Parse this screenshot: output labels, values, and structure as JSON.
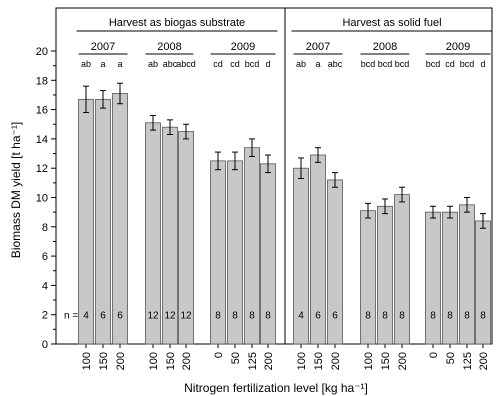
{
  "chart_data": {
    "type": "bar",
    "ylabel": "Biomass DM yield [t ha⁻¹]",
    "xlabel": "Nitrogen fertilization level [kg ha⁻¹]",
    "ylim": [
      0,
      20
    ],
    "yticks": [
      0,
      2,
      4,
      6,
      8,
      10,
      12,
      14,
      16,
      18,
      20
    ],
    "grid": false,
    "bar_color": "#c8c8c8",
    "n_prefix": "n =",
    "sections": [
      {
        "title": "Harvest as biogas substrate",
        "years": [
          {
            "year": "2007",
            "bars": [
              {
                "n_level": "100",
                "value": 16.7,
                "error": 0.9,
                "letters": "ab",
                "n": "4"
              },
              {
                "n_level": "150",
                "value": 16.7,
                "error": 0.6,
                "letters": "a",
                "n": "6"
              },
              {
                "n_level": "200",
                "value": 17.1,
                "error": 0.7,
                "letters": "a",
                "n": "6"
              }
            ]
          },
          {
            "year": "2008",
            "bars": [
              {
                "n_level": "100",
                "value": 15.1,
                "error": 0.5,
                "letters": "ab",
                "n": "12"
              },
              {
                "n_level": "150",
                "value": 14.8,
                "error": 0.5,
                "letters": "abc",
                "n": "12"
              },
              {
                "n_level": "200",
                "value": 14.5,
                "error": 0.5,
                "letters": "abcd",
                "n": "12"
              }
            ]
          },
          {
            "year": "2009",
            "bars": [
              {
                "n_level": "0",
                "value": 12.5,
                "error": 0.6,
                "letters": "cd",
                "n": "8"
              },
              {
                "n_level": "50",
                "value": 12.5,
                "error": 0.6,
                "letters": "cd",
                "n": "8"
              },
              {
                "n_level": "125",
                "value": 13.4,
                "error": 0.6,
                "letters": "bcd",
                "n": "8"
              },
              {
                "n_level": "200",
                "value": 12.3,
                "error": 0.6,
                "letters": "d",
                "n": "8"
              }
            ]
          }
        ]
      },
      {
        "title": "Harvest as solid fuel",
        "years": [
          {
            "year": "2007",
            "bars": [
              {
                "n_level": "100",
                "value": 12.0,
                "error": 0.7,
                "letters": "ab",
                "n": "4"
              },
              {
                "n_level": "150",
                "value": 12.9,
                "error": 0.5,
                "letters": "a",
                "n": "6"
              },
              {
                "n_level": "200",
                "value": 11.2,
                "error": 0.5,
                "letters": "abc",
                "n": "6"
              }
            ]
          },
          {
            "year": "2008",
            "bars": [
              {
                "n_level": "100",
                "value": 9.1,
                "error": 0.5,
                "letters": "bcd",
                "n": "8"
              },
              {
                "n_level": "150",
                "value": 9.4,
                "error": 0.5,
                "letters": "bcd",
                "n": "8"
              },
              {
                "n_level": "200",
                "value": 10.2,
                "error": 0.5,
                "letters": "bcd",
                "n": "8"
              }
            ]
          },
          {
            "year": "2009",
            "bars": [
              {
                "n_level": "0",
                "value": 9.0,
                "error": 0.4,
                "letters": "bcd",
                "n": "8"
              },
              {
                "n_level": "50",
                "value": 9.0,
                "error": 0.4,
                "letters": "cd",
                "n": "8"
              },
              {
                "n_level": "125",
                "value": 9.5,
                "error": 0.5,
                "letters": "bcd",
                "n": "8"
              },
              {
                "n_level": "200",
                "value": 8.4,
                "error": 0.5,
                "letters": "d",
                "n": "8"
              }
            ]
          }
        ]
      }
    ]
  }
}
